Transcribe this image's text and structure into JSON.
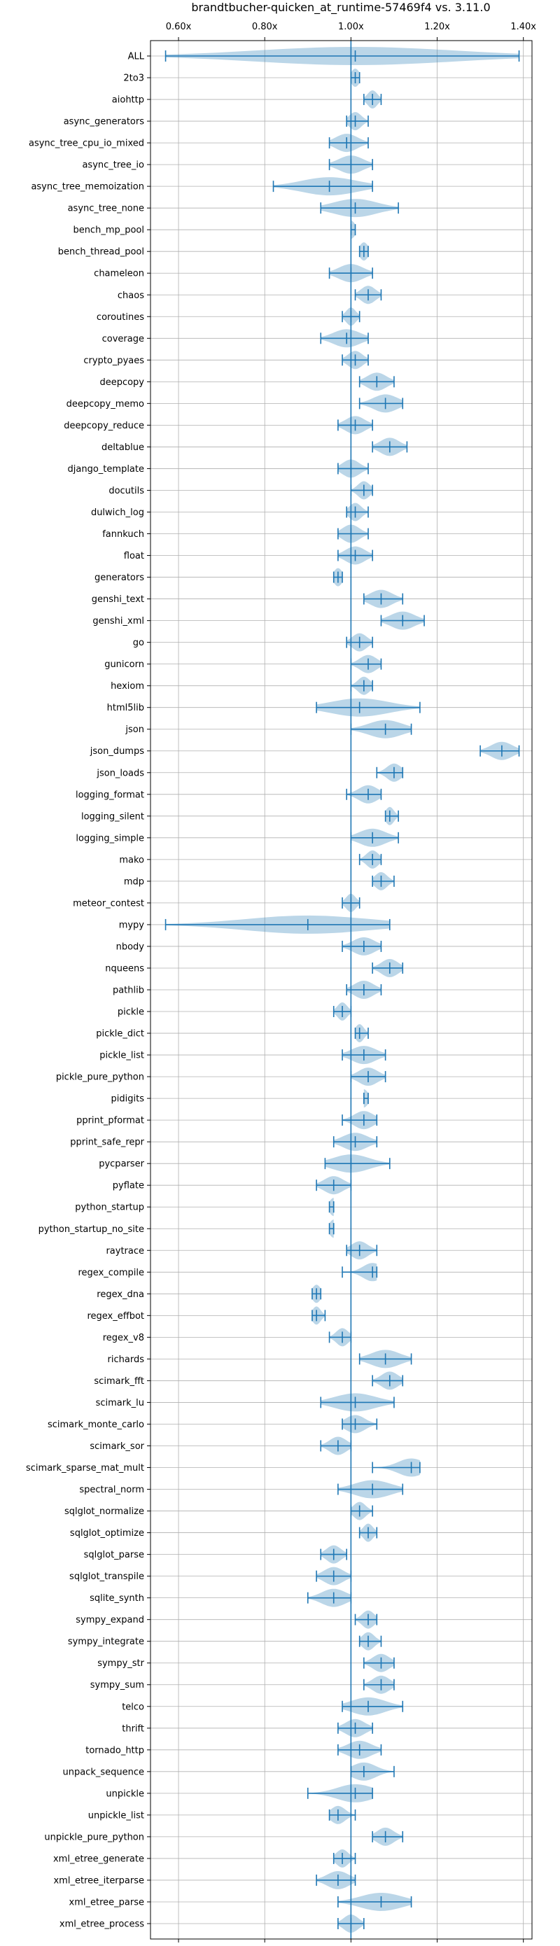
{
  "chart_data": {
    "type": "violin",
    "title": "brandtbucher-quicken_at_runtime-57469f4 vs. 3.11.0",
    "xlabel": "",
    "ylabel": "",
    "xlim": [
      0.535,
      1.42
    ],
    "x_ticks": [
      0.6,
      0.8,
      1.0,
      1.2,
      1.4
    ],
    "x_tick_labels": [
      "0.60x",
      "0.80x",
      "1.00x",
      "1.20x",
      "1.40x"
    ],
    "reference_line": 1.0,
    "grid": true,
    "tick_position": "top-and-bottom",
    "colors": {
      "violin": "#1f77b4",
      "violin_alpha": 0.3,
      "line": "#1f77b4",
      "grid": "#b0b0b0"
    },
    "benchmarks": [
      {
        "name": "ALL",
        "min": 0.57,
        "max": 1.39,
        "mean": 1.01
      },
      {
        "name": "2to3",
        "min": 1.0,
        "max": 1.02,
        "mean": 1.01
      },
      {
        "name": "aiohttp",
        "min": 1.03,
        "max": 1.07,
        "mean": 1.05
      },
      {
        "name": "async_generators",
        "min": 0.99,
        "max": 1.04,
        "mean": 1.01
      },
      {
        "name": "async_tree_cpu_io_mixed",
        "min": 0.95,
        "max": 1.04,
        "mean": 0.99
      },
      {
        "name": "async_tree_io",
        "min": 0.95,
        "max": 1.05,
        "mean": 1.0
      },
      {
        "name": "async_tree_memoization",
        "min": 0.82,
        "max": 1.05,
        "mean": 0.95
      },
      {
        "name": "async_tree_none",
        "min": 0.93,
        "max": 1.11,
        "mean": 1.01
      },
      {
        "name": "bench_mp_pool",
        "min": 1.0,
        "max": 1.01,
        "mean": 1.0
      },
      {
        "name": "bench_thread_pool",
        "min": 1.02,
        "max": 1.04,
        "mean": 1.03
      },
      {
        "name": "chameleon",
        "min": 0.95,
        "max": 1.05,
        "mean": 1.0
      },
      {
        "name": "chaos",
        "min": 1.01,
        "max": 1.07,
        "mean": 1.04
      },
      {
        "name": "coroutines",
        "min": 0.98,
        "max": 1.02,
        "mean": 1.0
      },
      {
        "name": "coverage",
        "min": 0.93,
        "max": 1.04,
        "mean": 0.99
      },
      {
        "name": "crypto_pyaes",
        "min": 0.98,
        "max": 1.04,
        "mean": 1.01
      },
      {
        "name": "deepcopy",
        "min": 1.02,
        "max": 1.1,
        "mean": 1.06
      },
      {
        "name": "deepcopy_memo",
        "min": 1.02,
        "max": 1.12,
        "mean": 1.08
      },
      {
        "name": "deepcopy_reduce",
        "min": 0.97,
        "max": 1.05,
        "mean": 1.01
      },
      {
        "name": "deltablue",
        "min": 1.05,
        "max": 1.13,
        "mean": 1.09
      },
      {
        "name": "django_template",
        "min": 0.97,
        "max": 1.04,
        "mean": 1.0
      },
      {
        "name": "docutils",
        "min": 1.0,
        "max": 1.05,
        "mean": 1.03
      },
      {
        "name": "dulwich_log",
        "min": 0.99,
        "max": 1.04,
        "mean": 1.01
      },
      {
        "name": "fannkuch",
        "min": 0.97,
        "max": 1.04,
        "mean": 1.0
      },
      {
        "name": "float",
        "min": 0.97,
        "max": 1.05,
        "mean": 1.01
      },
      {
        "name": "generators",
        "min": 0.96,
        "max": 0.98,
        "mean": 0.97
      },
      {
        "name": "genshi_text",
        "min": 1.03,
        "max": 1.12,
        "mean": 1.07
      },
      {
        "name": "genshi_xml",
        "min": 1.07,
        "max": 1.17,
        "mean": 1.12
      },
      {
        "name": "go",
        "min": 0.99,
        "max": 1.05,
        "mean": 1.02
      },
      {
        "name": "gunicorn",
        "min": 1.0,
        "max": 1.07,
        "mean": 1.04
      },
      {
        "name": "hexiom",
        "min": 1.0,
        "max": 1.05,
        "mean": 1.03
      },
      {
        "name": "html5lib",
        "min": 0.92,
        "max": 1.16,
        "mean": 1.02
      },
      {
        "name": "json",
        "min": 1.0,
        "max": 1.14,
        "mean": 1.08
      },
      {
        "name": "json_dumps",
        "min": 1.3,
        "max": 1.39,
        "mean": 1.35
      },
      {
        "name": "json_loads",
        "min": 1.06,
        "max": 1.12,
        "mean": 1.1
      },
      {
        "name": "logging_format",
        "min": 0.99,
        "max": 1.07,
        "mean": 1.04
      },
      {
        "name": "logging_silent",
        "min": 1.08,
        "max": 1.11,
        "mean": 1.09
      },
      {
        "name": "logging_simple",
        "min": 1.0,
        "max": 1.11,
        "mean": 1.05
      },
      {
        "name": "mako",
        "min": 1.02,
        "max": 1.07,
        "mean": 1.05
      },
      {
        "name": "mdp",
        "min": 1.05,
        "max": 1.1,
        "mean": 1.07
      },
      {
        "name": "meteor_contest",
        "min": 0.98,
        "max": 1.02,
        "mean": 1.0
      },
      {
        "name": "mypy",
        "min": 0.57,
        "max": 1.09,
        "mean": 0.9
      },
      {
        "name": "nbody",
        "min": 0.98,
        "max": 1.07,
        "mean": 1.03
      },
      {
        "name": "nqueens",
        "min": 1.05,
        "max": 1.12,
        "mean": 1.09
      },
      {
        "name": "pathlib",
        "min": 0.99,
        "max": 1.07,
        "mean": 1.03
      },
      {
        "name": "pickle",
        "min": 0.96,
        "max": 1.0,
        "mean": 0.98
      },
      {
        "name": "pickle_dict",
        "min": 1.01,
        "max": 1.04,
        "mean": 1.02
      },
      {
        "name": "pickle_list",
        "min": 0.98,
        "max": 1.08,
        "mean": 1.03
      },
      {
        "name": "pickle_pure_python",
        "min": 1.0,
        "max": 1.08,
        "mean": 1.04
      },
      {
        "name": "pidigits",
        "min": 1.03,
        "max": 1.04,
        "mean": 1.03
      },
      {
        "name": "pprint_pformat",
        "min": 0.98,
        "max": 1.06,
        "mean": 1.03
      },
      {
        "name": "pprint_safe_repr",
        "min": 0.96,
        "max": 1.06,
        "mean": 1.01
      },
      {
        "name": "pycparser",
        "min": 0.94,
        "max": 1.09,
        "mean": 1.0
      },
      {
        "name": "pyflate",
        "min": 0.92,
        "max": 1.0,
        "mean": 0.96
      },
      {
        "name": "python_startup",
        "min": 0.95,
        "max": 0.96,
        "mean": 0.96
      },
      {
        "name": "python_startup_no_site",
        "min": 0.95,
        "max": 0.96,
        "mean": 0.96
      },
      {
        "name": "raytrace",
        "min": 0.99,
        "max": 1.06,
        "mean": 1.02
      },
      {
        "name": "regex_compile",
        "min": 0.98,
        "max": 1.06,
        "mean": 1.05
      },
      {
        "name": "regex_dna",
        "min": 0.91,
        "max": 0.93,
        "mean": 0.92
      },
      {
        "name": "regex_effbot",
        "min": 0.91,
        "max": 0.94,
        "mean": 0.92
      },
      {
        "name": "regex_v8",
        "min": 0.95,
        "max": 1.0,
        "mean": 0.98
      },
      {
        "name": "richards",
        "min": 1.02,
        "max": 1.14,
        "mean": 1.08
      },
      {
        "name": "scimark_fft",
        "min": 1.05,
        "max": 1.12,
        "mean": 1.09
      },
      {
        "name": "scimark_lu",
        "min": 0.93,
        "max": 1.1,
        "mean": 1.01
      },
      {
        "name": "scimark_monte_carlo",
        "min": 0.98,
        "max": 1.06,
        "mean": 1.01
      },
      {
        "name": "scimark_sor",
        "min": 0.93,
        "max": 1.0,
        "mean": 0.97
      },
      {
        "name": "scimark_sparse_mat_mult",
        "min": 1.05,
        "max": 1.16,
        "mean": 1.14
      },
      {
        "name": "spectral_norm",
        "min": 0.97,
        "max": 1.12,
        "mean": 1.05
      },
      {
        "name": "sqlglot_normalize",
        "min": 1.0,
        "max": 1.05,
        "mean": 1.02
      },
      {
        "name": "sqlglot_optimize",
        "min": 1.02,
        "max": 1.06,
        "mean": 1.04
      },
      {
        "name": "sqlglot_parse",
        "min": 0.93,
        "max": 0.99,
        "mean": 0.96
      },
      {
        "name": "sqlglot_transpile",
        "min": 0.92,
        "max": 1.0,
        "mean": 0.96
      },
      {
        "name": "sqlite_synth",
        "min": 0.9,
        "max": 1.0,
        "mean": 0.96
      },
      {
        "name": "sympy_expand",
        "min": 1.01,
        "max": 1.06,
        "mean": 1.04
      },
      {
        "name": "sympy_integrate",
        "min": 1.02,
        "max": 1.07,
        "mean": 1.04
      },
      {
        "name": "sympy_str",
        "min": 1.03,
        "max": 1.1,
        "mean": 1.07
      },
      {
        "name": "sympy_sum",
        "min": 1.03,
        "max": 1.1,
        "mean": 1.07
      },
      {
        "name": "telco",
        "min": 0.98,
        "max": 1.12,
        "mean": 1.04
      },
      {
        "name": "thrift",
        "min": 0.97,
        "max": 1.05,
        "mean": 1.01
      },
      {
        "name": "tornado_http",
        "min": 0.97,
        "max": 1.07,
        "mean": 1.02
      },
      {
        "name": "unpack_sequence",
        "min": 1.0,
        "max": 1.1,
        "mean": 1.03
      },
      {
        "name": "unpickle",
        "min": 0.9,
        "max": 1.05,
        "mean": 1.01
      },
      {
        "name": "unpickle_list",
        "min": 0.95,
        "max": 1.01,
        "mean": 0.97
      },
      {
        "name": "unpickle_pure_python",
        "min": 1.05,
        "max": 1.12,
        "mean": 1.08
      },
      {
        "name": "xml_etree_generate",
        "min": 0.96,
        "max": 1.01,
        "mean": 0.98
      },
      {
        "name": "xml_etree_iterparse",
        "min": 0.92,
        "max": 1.01,
        "mean": 0.97
      },
      {
        "name": "xml_etree_parse",
        "min": 0.97,
        "max": 1.14,
        "mean": 1.07
      },
      {
        "name": "xml_etree_process",
        "min": 0.97,
        "max": 1.03,
        "mean": 1.0
      }
    ]
  }
}
